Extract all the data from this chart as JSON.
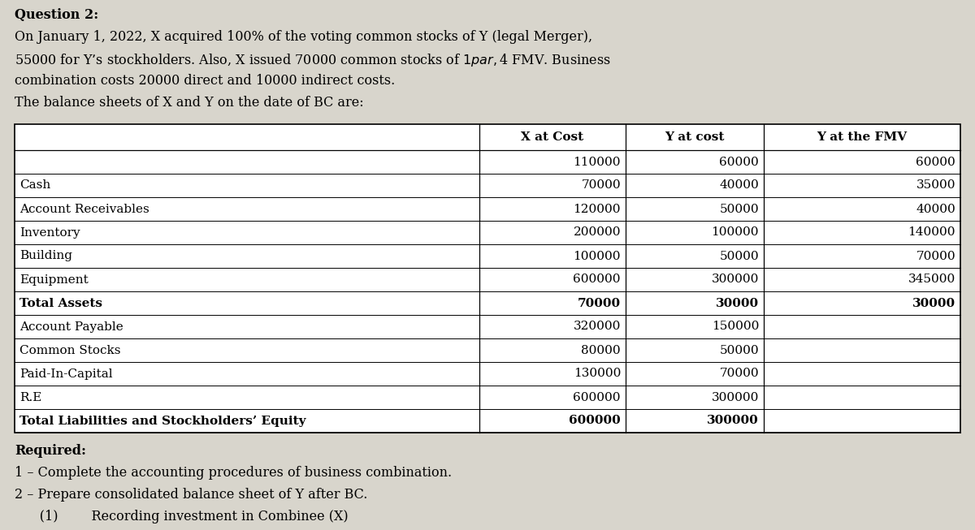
{
  "bg_color": "#d8d5cc",
  "title_lines": [
    [
      "Question 2:",
      true
    ],
    [
      "On January 1, 2022, X acquired 100% of the voting common stocks of Y (legal Merger),",
      false
    ],
    [
      "55000 for Y’s stockholders. Also, X issued 70000 common stocks of $1 par, $4 FMV. Business",
      false
    ],
    [
      "combination costs 20000 direct and 10000 indirect costs.",
      false
    ],
    [
      "The balance sheets of X and Y on the date of BC are:",
      false
    ]
  ],
  "col_headers": [
    "",
    "X at Cost",
    "Y at cost",
    "Y at the FMV"
  ],
  "table_rows": [
    {
      "label": "",
      "bold_label": false,
      "x": "110000",
      "y": "60000",
      "fmv": "60000",
      "bold_nums": false
    },
    {
      "label": "Cash",
      "bold_label": false,
      "x": "70000",
      "y": "40000",
      "fmv": "35000",
      "bold_nums": false
    },
    {
      "label": "Account Receivables",
      "bold_label": false,
      "x": "120000",
      "y": "50000",
      "fmv": "40000",
      "bold_nums": false
    },
    {
      "label": "Inventory",
      "bold_label": false,
      "x": "200000",
      "y": "100000",
      "fmv": "140000",
      "bold_nums": false
    },
    {
      "label": "Building",
      "bold_label": false,
      "x": "100000",
      "y": "50000",
      "fmv": "70000",
      "bold_nums": false
    },
    {
      "label": "Equipment",
      "bold_label": false,
      "x": "600000",
      "y": "300000",
      "fmv": "345000",
      "bold_nums": false
    },
    {
      "label": "Total Assets",
      "bold_label": true,
      "x": "70000",
      "y": "30000",
      "fmv": "30000",
      "bold_nums": true
    },
    {
      "label": "Account Payable",
      "bold_label": false,
      "x": "320000",
      "y": "150000",
      "fmv": "",
      "bold_nums": false
    },
    {
      "label": "Common Stocks",
      "bold_label": false,
      "x": "80000",
      "y": "50000",
      "fmv": "",
      "bold_nums": false
    },
    {
      "label": "Paid-In-Capital",
      "bold_label": false,
      "x": "130000",
      "y": "70000",
      "fmv": "",
      "bold_nums": false
    },
    {
      "label": "R.E",
      "bold_label": false,
      "x": "600000",
      "y": "300000",
      "fmv": "",
      "bold_nums": false
    },
    {
      "label": "Total Liabilities and Stockholders’ Equity",
      "bold_label": true,
      "x": "",
      "y": "",
      "fmv": "",
      "bold_nums": false
    }
  ],
  "last_row_x": "600000",
  "last_row_y": "300000",
  "required_lines": [
    [
      "Required:",
      true
    ],
    [
      "1 – Complete the accounting procedures of business combination.",
      false
    ],
    [
      "2 – Prepare consolidated balance sheet of Y after BC.",
      false
    ]
  ],
  "bottom_text": "      (1)        Recording investment in Combinee (X)",
  "font_size": 11.5,
  "table_font_size": 11.0
}
